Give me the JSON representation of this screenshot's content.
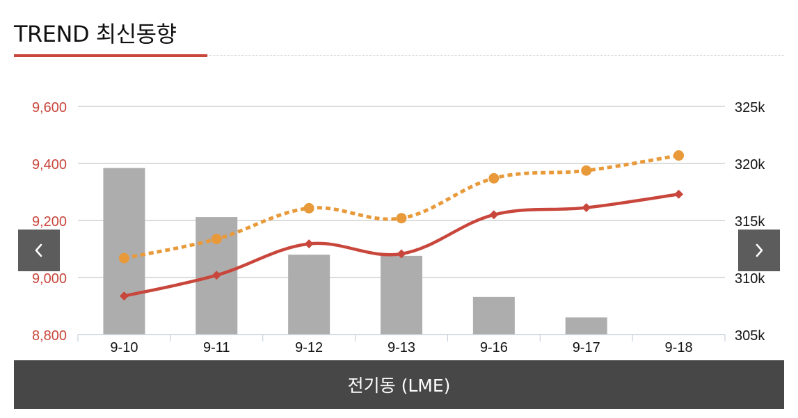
{
  "header": {
    "title": "TREND 최신동향"
  },
  "colors": {
    "accent": "#c8463b",
    "line_primary": "#c8463b",
    "line_secondary": "#e89a3a",
    "bars": "#adadad",
    "footer_bg": "#474747"
  },
  "nav": {
    "prev_icon": "chevron-left-icon",
    "next_icon": "chevron-right-icon"
  },
  "footer": {
    "label": "전기동 (LME)"
  },
  "chart_data": {
    "type": "bar",
    "categories": [
      "9-10",
      "9-11",
      "9-12",
      "9-13",
      "9-16",
      "9-17",
      "9-18"
    ],
    "y_left": {
      "ylim": [
        8800,
        9600
      ],
      "ticks": [
        "8,800",
        "9,000",
        "9,200",
        "9,400",
        "9,600"
      ],
      "tick_values": [
        8800,
        9000,
        9200,
        9400,
        9600
      ]
    },
    "y_right": {
      "ylim": [
        305000,
        325000
      ],
      "ticks": [
        "305k",
        "310k",
        "315k",
        "320k",
        "325k"
      ],
      "tick_values": [
        305000,
        310000,
        315000,
        320000,
        325000
      ]
    },
    "series": [
      {
        "type": "bar",
        "axis": "right",
        "values": [
          319600,
          315300,
          312000,
          311900,
          308300,
          306500,
          null
        ]
      },
      {
        "type": "line",
        "axis": "left",
        "style": "solid",
        "marker": "diamond",
        "values": [
          8935,
          9008,
          9118,
          9083,
          9220,
          9245,
          9292
        ]
      },
      {
        "type": "line",
        "axis": "left",
        "style": "dotted",
        "marker": "circle",
        "values": [
          9068,
          9135,
          9243,
          9208,
          9348,
          9375,
          9428
        ]
      }
    ],
    "grid": true
  }
}
